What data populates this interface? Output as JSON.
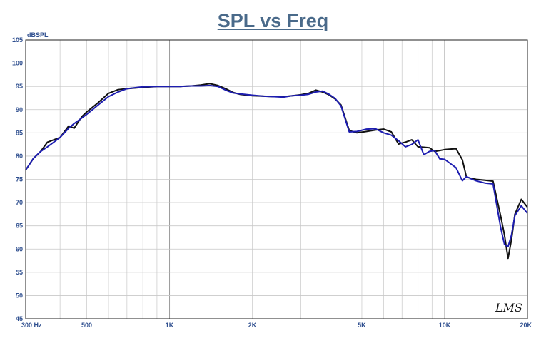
{
  "chart_data": {
    "type": "line",
    "title": "SPL vs Freq",
    "ylabel": "dBSPL",
    "xlabel": "",
    "xscale": "log",
    "xlim": [
      300,
      20000
    ],
    "ylim": [
      45,
      105
    ],
    "grid": true,
    "y_ticks": [
      "105",
      "100",
      "95",
      "90",
      "85",
      "80",
      "75",
      "70",
      "65",
      "60",
      "55",
      "50",
      "45"
    ],
    "y_tick_values": [
      105,
      100,
      95,
      90,
      85,
      80,
      75,
      70,
      65,
      60,
      55,
      50,
      45
    ],
    "x_ticks": [
      "300 Hz",
      "500",
      "1K",
      "2K",
      "5K",
      "10K",
      "20K"
    ],
    "x_tick_values": [
      300,
      500,
      1000,
      2000,
      5000,
      10000,
      20000
    ],
    "watermark": "LMS",
    "series": [
      {
        "color": "#111111",
        "x": [
          300,
          320,
          340,
          360,
          400,
          430,
          450,
          480,
          500,
          550,
          600,
          650,
          700,
          800,
          900,
          1000,
          1100,
          1200,
          1300,
          1400,
          1500,
          1600,
          1700,
          1800,
          2000,
          2200,
          2400,
          2600,
          2800,
          3000,
          3200,
          3400,
          3600,
          3800,
          4000,
          4200,
          4500,
          4800,
          5200,
          5600,
          6000,
          6400,
          6800,
          7200,
          7600,
          8000,
          8400,
          8800,
          9200,
          9600,
          10000,
          11000,
          11600,
          12000,
          12500,
          13000,
          14000,
          15000,
          16000,
          16500,
          17000,
          17500,
          18000,
          19000,
          20000
        ],
        "y": [
          77,
          79.5,
          81,
          83,
          84,
          86.5,
          86,
          88.5,
          89.5,
          91.5,
          93.5,
          94.3,
          94.5,
          94.8,
          95,
          95,
          95,
          95.1,
          95.3,
          95.6,
          95.2,
          94.5,
          93.7,
          93.3,
          93,
          92.9,
          92.8,
          92.8,
          93,
          93.2,
          93.5,
          94.2,
          93.8,
          93.2,
          92.3,
          91,
          85.5,
          85,
          85.3,
          85.6,
          85.8,
          85.2,
          82.6,
          83,
          83.5,
          82,
          81.9,
          81.8,
          81,
          81.2,
          81.4,
          81.6,
          79.2,
          75.5,
          75.2,
          75,
          74.8,
          74.6,
          67,
          63,
          58,
          62,
          67.5,
          70.7,
          69
        ]
      },
      {
        "color": "#1d1db0",
        "x": [
          300,
          320,
          340,
          360,
          400,
          430,
          450,
          480,
          500,
          550,
          600,
          650,
          700,
          800,
          900,
          1000,
          1100,
          1200,
          1300,
          1400,
          1500,
          1600,
          1700,
          1800,
          2000,
          2200,
          2400,
          2600,
          2800,
          3000,
          3200,
          3400,
          3600,
          3800,
          4000,
          4200,
          4500,
          4800,
          5200,
          5600,
          6000,
          6400,
          6800,
          7200,
          7600,
          8000,
          8400,
          8800,
          9200,
          9600,
          10000,
          11000,
          11600,
          12000,
          12500,
          13000,
          14000,
          15000,
          16000,
          16500,
          17000,
          17500,
          18000,
          19000,
          20000
        ],
        "y": [
          77,
          79.5,
          81,
          82,
          84,
          86,
          87,
          88.2,
          89,
          91,
          92.8,
          93.8,
          94.5,
          94.9,
          95,
          95,
          95,
          95.1,
          95.1,
          95.2,
          95,
          94.2,
          93.6,
          93.4,
          93.1,
          92.9,
          92.8,
          92.7,
          93,
          93.1,
          93.3,
          93.8,
          94,
          93.3,
          92.4,
          90.8,
          85.2,
          85.3,
          85.8,
          85.9,
          85,
          84.5,
          83.3,
          82,
          82.5,
          83.5,
          80.3,
          81,
          81.2,
          79.4,
          79.3,
          77.5,
          74.7,
          75.6,
          75.1,
          74.7,
          74.2,
          74,
          64.5,
          61,
          60.5,
          63,
          67.2,
          69.3,
          67.7
        ]
      }
    ]
  }
}
